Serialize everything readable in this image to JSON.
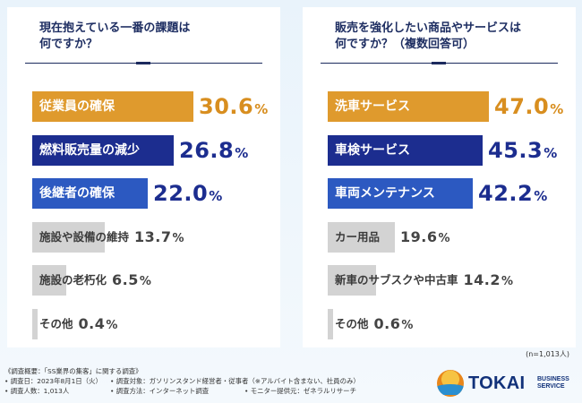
{
  "chart_data": [
    {
      "type": "bar",
      "orientation": "horizontal",
      "title": "現在抱えている一番の課題は何ですか？",
      "unit": "%",
      "categories": [
        "従業員の確保",
        "燃料販売量の減少",
        "後継者の確保",
        "施設や設備の維持",
        "施設の老朽化",
        "その他"
      ],
      "values": [
        30.6,
        26.8,
        22.0,
        13.7,
        6.5,
        0.4
      ],
      "value_labels": [
        "30.6%",
        "26.8%",
        "22.0%",
        "13.7%",
        "6.5%",
        "0.4%"
      ],
      "colors": [
        "#df9a2d",
        "#1c2d8f",
        "#2c59c1",
        "#d3d3d3",
        "#d3d3d3",
        "#d3d3d3"
      ],
      "label_styles": [
        "strong",
        "strong",
        "strong",
        "light",
        "light",
        "light"
      ],
      "value_styles": [
        "orange",
        "blue",
        "blue",
        "grey",
        "grey",
        "grey"
      ]
    },
    {
      "type": "bar",
      "orientation": "horizontal",
      "title": "販売を強化したい商品やサービスは何ですか？（複数回答可）",
      "unit": "%",
      "categories": [
        "洗車サービス",
        "車検サービス",
        "車両メンテナンス",
        "カー用品",
        "新車のサブスクや中古車",
        "その他"
      ],
      "values": [
        47.0,
        45.3,
        42.2,
        19.6,
        14.2,
        0.6
      ],
      "value_labels": [
        "47.0%",
        "45.3%",
        "42.2%",
        "19.6%",
        "14.2%",
        "0.6%"
      ],
      "colors": [
        "#df9a2d",
        "#1c2d8f",
        "#2c59c1",
        "#d3d3d3",
        "#d3d3d3",
        "#d3d3d3"
      ],
      "label_styles": [
        "strong",
        "strong",
        "strong",
        "light",
        "light",
        "light"
      ],
      "value_styles": [
        "orange",
        "blue",
        "blue",
        "grey",
        "grey",
        "grey"
      ]
    }
  ],
  "left": {
    "title_line1": "現在抱えている一番の課題は",
    "title_line2": "何ですか？"
  },
  "right": {
    "title_line1": "販売を強化したい商品やサービスは",
    "title_line2": "何ですか？（複数回答可）"
  },
  "note_n": "(n=1,013人)",
  "footer": {
    "overview": "《調査概要：「SS業界の集客」に関する調査》",
    "date": "• 調査日：2023年8月1日（火）",
    "target": "• 調査対象：ガソリンスタンド経営者・従事者（※アルバイト含まない、社員のみ）",
    "count": "• 調査人数：1,013人",
    "method": "• 調査方法：インターネット調査",
    "provider": "• モニター提供元：ゼネラルリサーチ"
  },
  "logo": {
    "name": "TOKAI",
    "sub_line1": "BUSINESS",
    "sub_line2": "SERVICE",
    "colors": {
      "navy": "#12327a",
      "orange": "#e8861a",
      "blue": "#2a8fd0"
    }
  }
}
